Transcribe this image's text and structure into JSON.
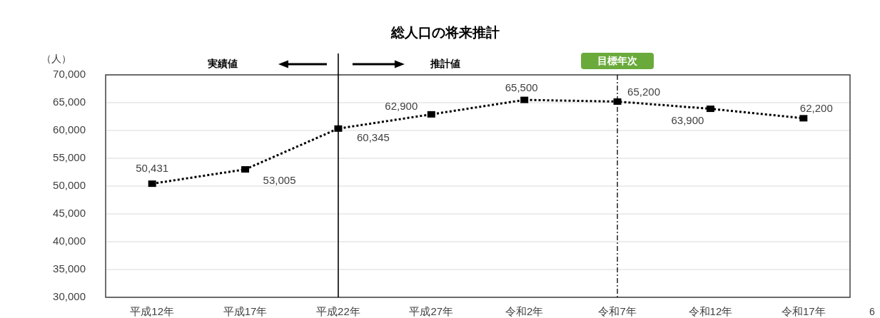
{
  "chart_data": {
    "type": "line",
    "title": "総人口の将来推計",
    "ylabel": "（人）",
    "categories": [
      "平成12年",
      "平成17年",
      "平成22年",
      "平成27年",
      "令和2年",
      "令和7年",
      "令和12年",
      "令和17年"
    ],
    "series": [
      {
        "color": "#000000",
        "values": [
          50431,
          53005,
          60345,
          62900,
          65500,
          65200,
          63900,
          62200
        ],
        "value_labels": [
          "50,431",
          "53,005",
          "60,345",
          "62,900",
          "65,500",
          "65,200",
          "63,900",
          "62,200"
        ]
      }
    ],
    "ylim": [
      30000,
      70000
    ],
    "yticks": [
      {
        "value": 30000,
        "label": "30,000"
      },
      {
        "value": 35000,
        "label": "35,000"
      },
      {
        "value": 40000,
        "label": "40,000"
      },
      {
        "value": 45000,
        "label": "45,000"
      },
      {
        "value": 50000,
        "label": "50,000"
      },
      {
        "value": 55000,
        "label": "55,000"
      },
      {
        "value": 60000,
        "label": "60,000"
      },
      {
        "value": 65000,
        "label": "65,000"
      },
      {
        "value": 70000,
        "label": "70,000"
      }
    ],
    "grid": "y",
    "marker": "square",
    "line_style": "dotted",
    "ref_lines": [
      {
        "axis": "x",
        "value": "平成22年",
        "color": "#000000",
        "line_style": "solid"
      },
      {
        "axis": "x",
        "value": "令和7年",
        "label": "目標年次",
        "color": "#000000",
        "line_style": "dashed"
      }
    ],
    "annotations": [
      "実績値",
      "推計値",
      "6"
    ]
  }
}
